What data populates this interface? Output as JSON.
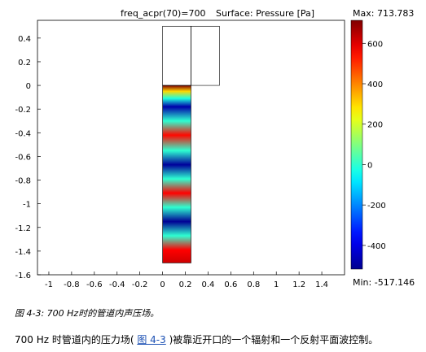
{
  "figure": {
    "title_left": "freq_acpr(70)=700",
    "title_right": "Surface: Pressure [Pa]",
    "colorbar_max_label": "Max: 713.783",
    "colorbar_min_label": "Min: -517.146",
    "chart_data": {
      "type": "heatmap",
      "title": "freq_acpr(70)=700    Surface: Pressure [Pa]",
      "xlim": [
        -1.1,
        1.6
      ],
      "ylim": [
        -1.6,
        0.55
      ],
      "x_ticks": [
        -1,
        -0.8,
        -0.6,
        -0.4,
        -0.2,
        0,
        0.2,
        0.4,
        0.6,
        0.8,
        1,
        1.2,
        1.4
      ],
      "x_tick_labels": [
        "-1",
        "-0.8",
        "-0.6",
        "-0.4",
        "-0.2",
        "0",
        "0.2",
        "0.4",
        "0.6",
        "0.8",
        "1",
        "1.2",
        "1.4"
      ],
      "y_ticks": [
        0.4,
        0.2,
        0,
        -0.2,
        -0.4,
        -0.6,
        -0.8,
        -1,
        -1.2,
        -1.4,
        -1.6
      ],
      "y_tick_labels": [
        "0.4",
        "0.2",
        "0",
        "-0.2",
        "-0.4",
        "-0.6",
        "-0.8",
        "-1",
        "-1.2",
        "-1.4",
        "-1.6"
      ],
      "pipe": {
        "x": [
          0,
          0.25
        ],
        "y": [
          -1.5,
          0
        ]
      },
      "outline_boxes": [
        {
          "x": [
            0,
            0.25
          ],
          "y": [
            0,
            0.5
          ]
        },
        {
          "x": [
            0.25,
            0.5
          ],
          "y": [
            0,
            0.5
          ]
        }
      ],
      "value_range": [
        -517.146,
        713.783
      ],
      "colorbar_ticks": [
        600,
        400,
        200,
        0,
        -200,
        -400
      ],
      "colorbar_tick_labels": [
        "600",
        "400",
        "200",
        "0",
        "-200",
        "-400"
      ],
      "field_bands": [
        {
          "y": 0,
          "value": 713
        },
        {
          "y": -0.05,
          "value": 300
        },
        {
          "y": -0.11,
          "value": -20
        },
        {
          "y": -0.18,
          "value": -480
        },
        {
          "y": -0.3,
          "value": 0
        },
        {
          "y": -0.42,
          "value": 550
        },
        {
          "y": -0.55,
          "value": 0
        },
        {
          "y": -0.67,
          "value": -500
        },
        {
          "y": -0.79,
          "value": 0
        },
        {
          "y": -0.91,
          "value": 560
        },
        {
          "y": -1.03,
          "value": 0
        },
        {
          "y": -1.15,
          "value": -510
        },
        {
          "y": -1.27,
          "value": 0
        },
        {
          "y": -1.39,
          "value": 560
        },
        {
          "y": -1.5,
          "value": 620
        }
      ]
    }
  },
  "caption": "图 4-3: 700 Hz时的管道内声压场。",
  "paragraph": {
    "before": "700 Hz 时管道内的压力场( ",
    "link": "图 4-3",
    "after": ")被靠近开口的一个辐射和一个反射平面波控制。"
  }
}
